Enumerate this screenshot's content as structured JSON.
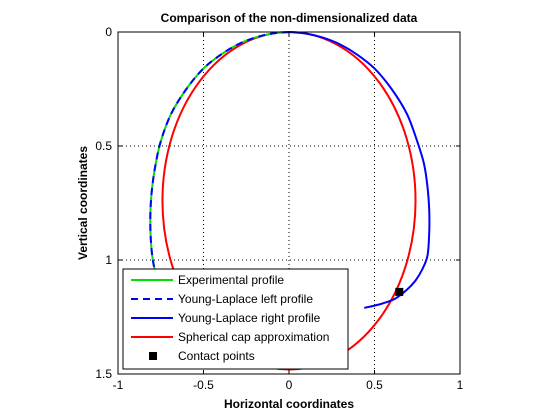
{
  "chart_data": {
    "type": "line",
    "title": "Comparison of the non-dimensionalized data",
    "xlabel": "Horizontal coordinates",
    "ylabel": "Vertical coordinates",
    "xlim": [
      -1,
      1
    ],
    "ylim": [
      0,
      1.5
    ],
    "y_reversed": true,
    "grid": true,
    "grid_style": "dotted",
    "xticks": [
      -1,
      -0.5,
      0,
      0.5,
      1
    ],
    "xtick_labels": [
      "-1",
      "-0.5",
      "0",
      "0.5",
      "1"
    ],
    "yticks": [
      0,
      0.5,
      1,
      1.5
    ],
    "ytick_labels": [
      "0",
      "0.5",
      "1",
      "1.5"
    ],
    "legend_position": "bottom-left",
    "series": [
      {
        "name": "Experimental profile",
        "color": "#00e000",
        "style": "solid",
        "x": [
          0.0,
          -0.1,
          -0.2,
          -0.3,
          -0.4,
          -0.5,
          -0.6,
          -0.69,
          -0.75,
          -0.78,
          -0.8,
          -0.81,
          -0.81,
          -0.8,
          -0.78,
          -0.75,
          -0.73,
          -0.71
        ],
        "y": [
          0.0,
          0.007,
          0.025,
          0.055,
          0.1,
          0.16,
          0.25,
          0.36,
          0.48,
          0.58,
          0.68,
          0.78,
          0.88,
          0.98,
          1.06,
          1.13,
          1.18,
          1.21
        ]
      },
      {
        "name": "Young-Laplace left profile",
        "color": "#0000ff",
        "style": "dashed",
        "x": [
          0.0,
          -0.1,
          -0.2,
          -0.3,
          -0.4,
          -0.5,
          -0.6,
          -0.69,
          -0.75,
          -0.78,
          -0.8,
          -0.81,
          -0.81,
          -0.8,
          -0.78,
          -0.75,
          -0.73,
          -0.71
        ],
        "y": [
          0.0,
          0.007,
          0.025,
          0.055,
          0.1,
          0.16,
          0.25,
          0.36,
          0.48,
          0.58,
          0.68,
          0.78,
          0.88,
          0.98,
          1.06,
          1.13,
          1.18,
          1.21
        ]
      },
      {
        "name": "Young-Laplace right profile",
        "color": "#0000ff",
        "style": "solid",
        "x": [
          0.0,
          0.1,
          0.2,
          0.3,
          0.4,
          0.5,
          0.6,
          0.69,
          0.75,
          0.79,
          0.81,
          0.82,
          0.82,
          0.81,
          0.78,
          0.74,
          0.69,
          0.62,
          0.55,
          0.5,
          0.44
        ],
        "y": [
          0.0,
          0.007,
          0.025,
          0.055,
          0.1,
          0.16,
          0.25,
          0.36,
          0.48,
          0.58,
          0.68,
          0.78,
          0.88,
          0.98,
          1.04,
          1.09,
          1.13,
          1.17,
          1.19,
          1.2,
          1.21
        ]
      },
      {
        "name": "Spherical cap approximation",
        "color": "#ff0000",
        "style": "solid",
        "circle": {
          "center": [
            0,
            0.74
          ],
          "radius": 0.74,
          "rx": 0.74,
          "ry": 0.74
        }
      },
      {
        "name": "Contact points",
        "color": "#000000",
        "style": "marker-square",
        "x": [
          0.645
        ],
        "y": [
          1.14
        ]
      }
    ]
  }
}
